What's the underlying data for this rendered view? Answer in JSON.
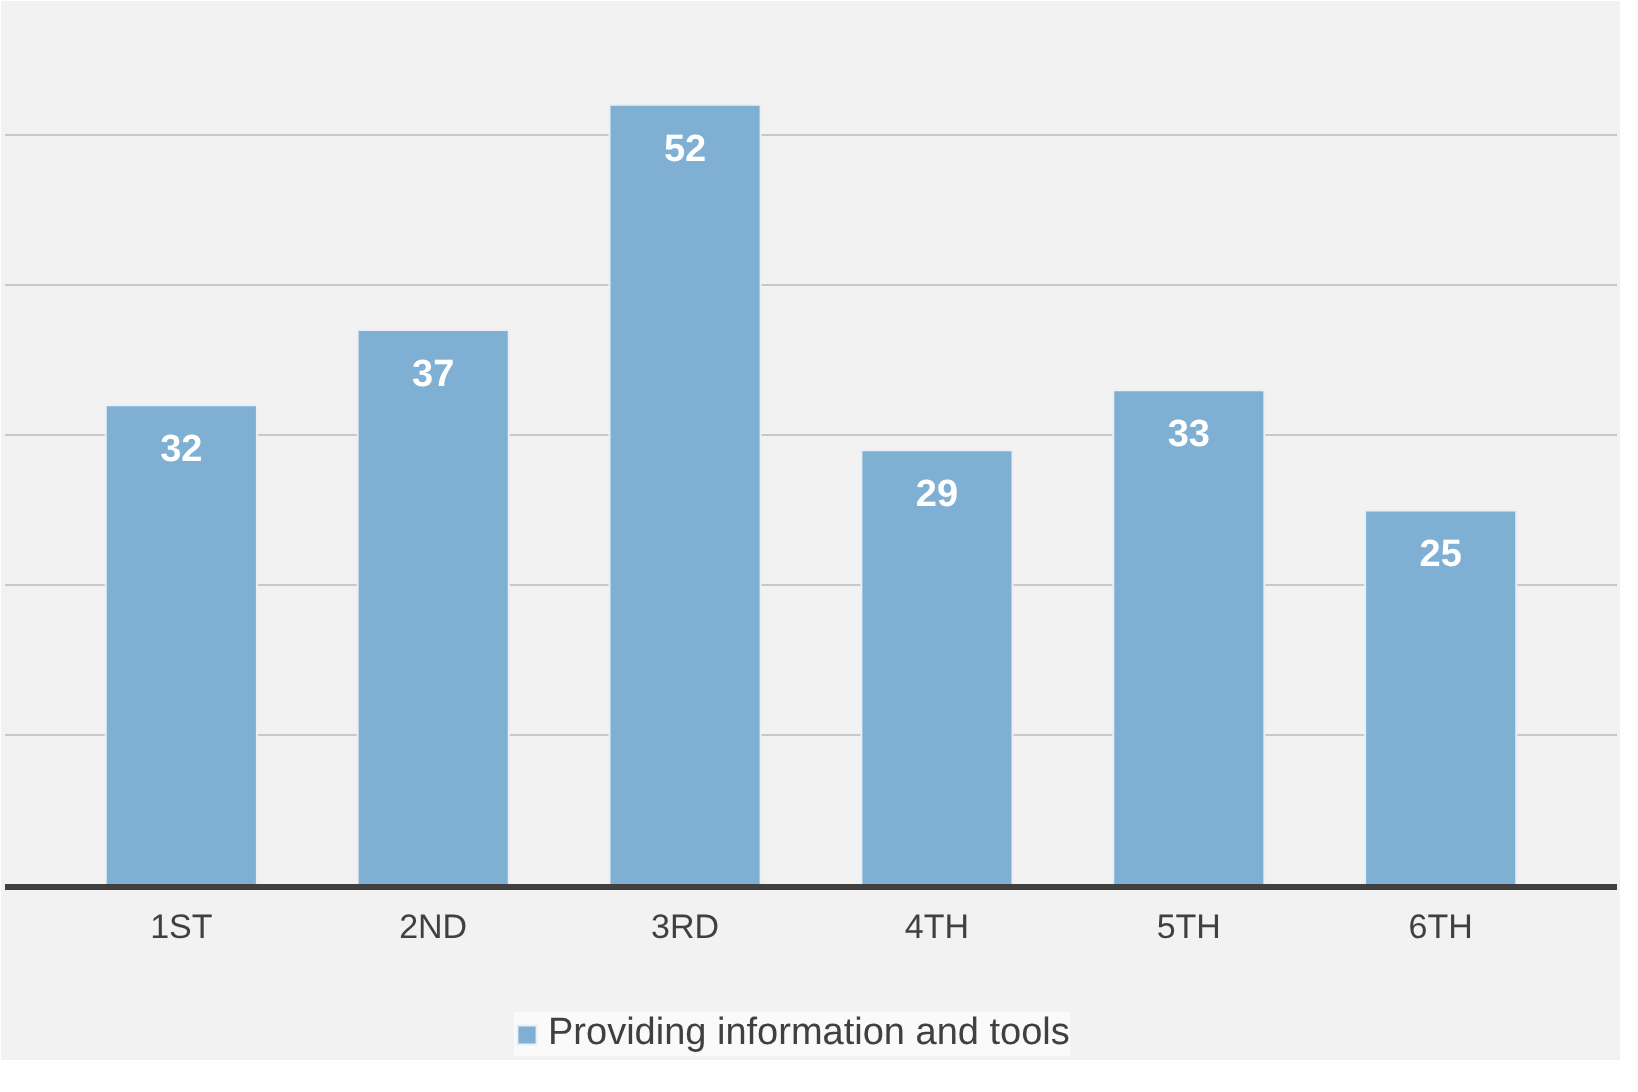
{
  "chart_data": {
    "type": "bar",
    "categories": [
      "1ST",
      "2ND",
      "3RD",
      "4TH",
      "5TH",
      "6TH"
    ],
    "series": [
      {
        "name": "Providing information and tools",
        "color": "#7fb0d3",
        "values": [
          32,
          37,
          52,
          29,
          33,
          25
        ]
      }
    ],
    "tick_labels": "x",
    "grid": "y",
    "data_labels": true,
    "legend": "bottom"
  }
}
